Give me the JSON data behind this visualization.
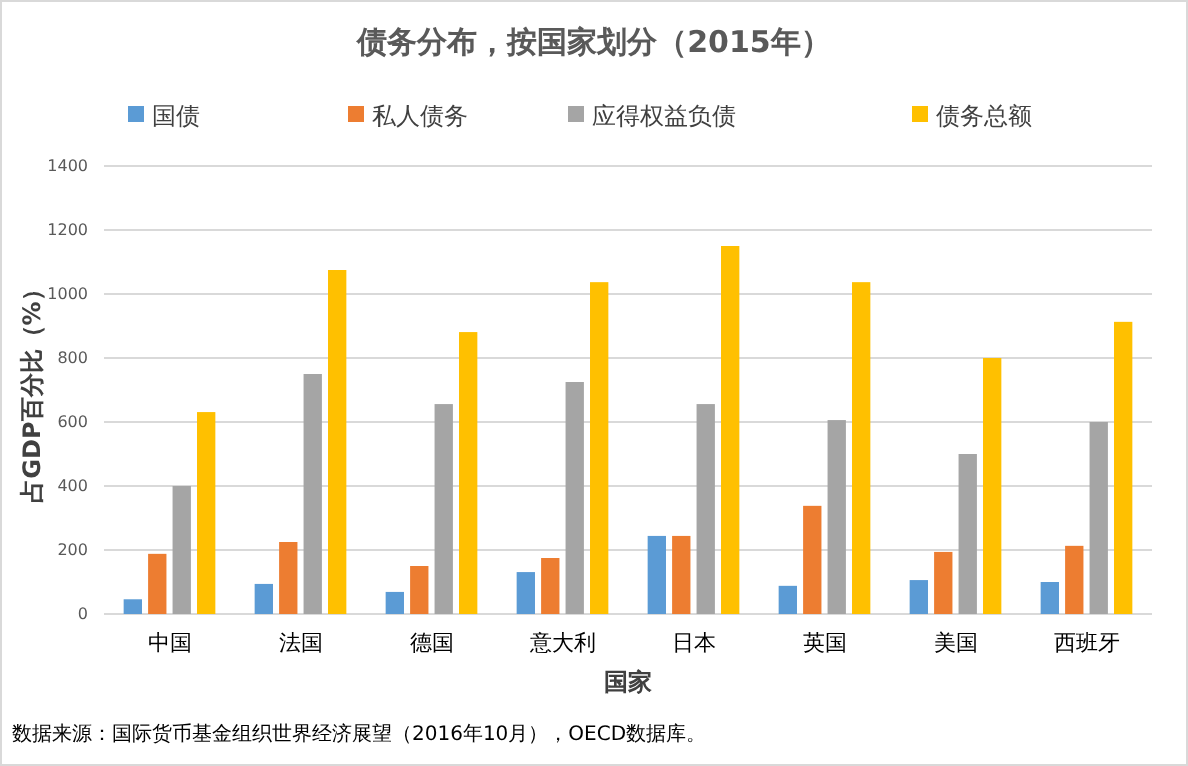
{
  "chart_data": {
    "type": "bar",
    "title": "债务分布，按国家划分（2015年）",
    "xlabel": "国家",
    "ylabel": "占GDP百分比（%）",
    "categories": [
      "中国",
      "法国",
      "德国",
      "意大利",
      "日本",
      "英国",
      "美国",
      "西班牙"
    ],
    "series": [
      {
        "name": "国债",
        "color": "#5b9bd5",
        "values": [
          46,
          94,
          69,
          131,
          244,
          88,
          106,
          100
        ]
      },
      {
        "name": "私人债务",
        "color": "#ed7d31",
        "values": [
          188,
          225,
          150,
          175,
          244,
          338,
          194,
          213
        ]
      },
      {
        "name": "应得权益负债",
        "color": "#a5a5a5",
        "values": [
          400,
          750,
          656,
          725,
          656,
          606,
          500,
          600
        ]
      },
      {
        "name": "债务总额",
        "color": "#ffc000",
        "values": [
          631,
          1075,
          881,
          1037,
          1150,
          1037,
          800,
          913
        ]
      }
    ],
    "ylim": [
      0,
      1400
    ],
    "yticks": [
      0,
      200,
      400,
      600,
      800,
      1000,
      1200,
      1400
    ],
    "grid": "y",
    "legend": "top",
    "annotations": [
      "数据来源：国际货币基金组织世界经济展望（2016年10月），OECD数据库。"
    ]
  }
}
